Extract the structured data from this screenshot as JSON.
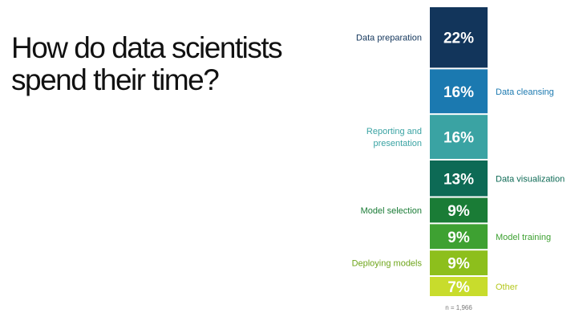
{
  "title": {
    "line1": "How do data scientists",
    "line2": "spend their time?"
  },
  "footnote": "n = 1,966",
  "chart_data": {
    "type": "bar",
    "stacked": true,
    "orientation": "vertical-stack",
    "categories": [
      "Data preparation",
      "Data cleansing",
      "Reporting and presentation",
      "Data visualization",
      "Model selection",
      "Model training",
      "Deploying models",
      "Other"
    ],
    "label_lines": [
      [
        "Data preparation"
      ],
      [
        "Data cleansing"
      ],
      [
        "Reporting and",
        "presentation"
      ],
      [
        "Data visualization"
      ],
      [
        "Model selection"
      ],
      [
        "Model training"
      ],
      [
        "Deploying models"
      ],
      [
        "Other"
      ]
    ],
    "label_side": [
      "left",
      "right",
      "left",
      "right",
      "left",
      "right",
      "left",
      "right"
    ],
    "values": [
      22,
      16,
      16,
      13,
      9,
      9,
      9,
      7
    ],
    "value_labels": [
      "22%",
      "16%",
      "16%",
      "13%",
      "9%",
      "9%",
      "9%",
      "7%"
    ],
    "colors": [
      "#12355b",
      "#1b79b0",
      "#3aa3a3",
      "#0d6a55",
      "#1a7c36",
      "#3ea132",
      "#8dbf1c",
      "#c8dc2c"
    ],
    "label_colors": [
      "#12355b",
      "#1b79b0",
      "#3aa3a3",
      "#0d6a55",
      "#1a7c36",
      "#3ea132",
      "#6ea51a",
      "#b5c81e"
    ],
    "unit": "%"
  }
}
